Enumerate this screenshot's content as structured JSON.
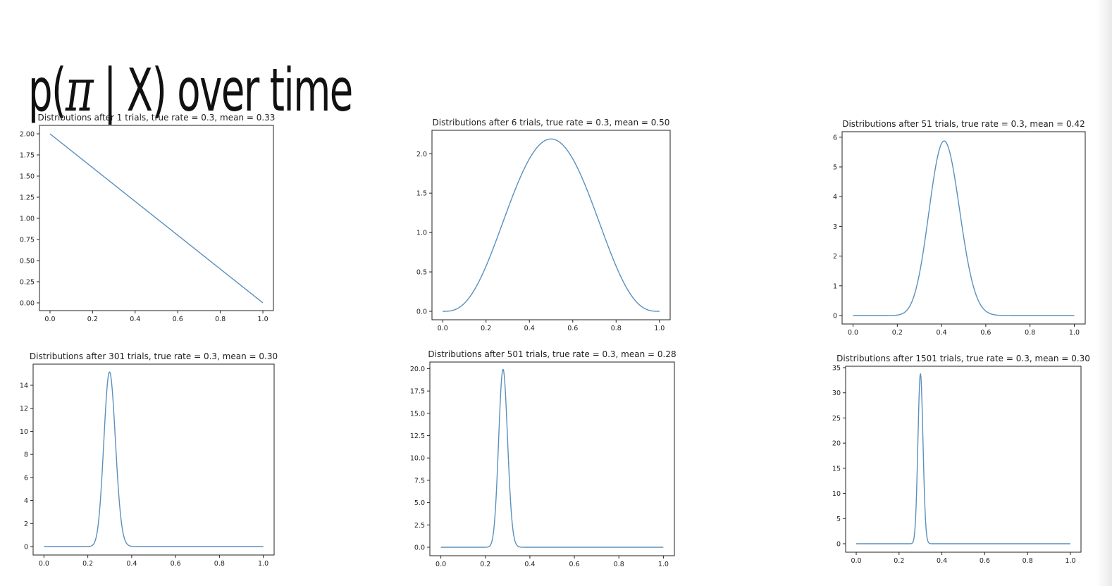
{
  "slide": {
    "title_prefix": "p(",
    "title_symbol": "π",
    "title_suffix": " | X) over time"
  },
  "colors": {
    "line": "#5a90bd",
    "axes": "#222222"
  },
  "chart_data": [
    {
      "type": "line",
      "title": "Distributions after 1 trials, true rate = 0.3, mean = 0.33",
      "beta": [
        1,
        2
      ],
      "xlim": [
        0,
        1
      ],
      "ylim": [
        0,
        2.0
      ],
      "xticks": [
        0,
        0.2,
        0.4,
        0.6,
        0.8,
        1.0
      ],
      "xtick_labels": [
        "0.0",
        "0.2",
        "0.4",
        "0.6",
        "0.8",
        "1.0"
      ],
      "yticks": [
        0,
        0.25,
        0.5,
        0.75,
        1.0,
        1.25,
        1.5,
        1.75,
        2.0
      ],
      "ytick_labels": [
        "0.00",
        "0.25",
        "0.50",
        "0.75",
        "1.00",
        "1.25",
        "1.50",
        "1.75",
        "2.00"
      ]
    },
    {
      "type": "line",
      "title": "Distributions after 6 trials, true rate = 0.3, mean = 0.50",
      "beta": [
        4,
        4
      ],
      "xlim": [
        0,
        1
      ],
      "ylim": [
        0,
        2.19
      ],
      "xticks": [
        0,
        0.2,
        0.4,
        0.6,
        0.8,
        1.0
      ],
      "xtick_labels": [
        "0.0",
        "0.2",
        "0.4",
        "0.6",
        "0.8",
        "1.0"
      ],
      "yticks": [
        0,
        0.5,
        1.0,
        1.5,
        2.0
      ],
      "ytick_labels": [
        "0.0",
        "0.5",
        "1.0",
        "1.5",
        "2.0"
      ]
    },
    {
      "type": "line",
      "title": "Distributions after 51 trials, true rate = 0.3, mean = 0.42",
      "beta": [
        22,
        31
      ],
      "xlim": [
        0,
        1
      ],
      "ylim": [
        0,
        5.9
      ],
      "xticks": [
        0,
        0.2,
        0.4,
        0.6,
        0.8,
        1.0
      ],
      "xtick_labels": [
        "0.0",
        "0.2",
        "0.4",
        "0.6",
        "0.8",
        "1.0"
      ],
      "yticks": [
        0,
        1,
        2,
        3,
        4,
        5,
        6
      ],
      "ytick_labels": [
        "0",
        "1",
        "2",
        "3",
        "4",
        "5",
        "6"
      ]
    },
    {
      "type": "line",
      "title": "Distributions after 301 trials, true rate = 0.3, mean = 0.30",
      "beta": [
        91,
        212
      ],
      "xlim": [
        0,
        1
      ],
      "ylim": [
        0,
        15.1
      ],
      "xticks": [
        0,
        0.2,
        0.4,
        0.6,
        0.8,
        1.0
      ],
      "xtick_labels": [
        "0.0",
        "0.2",
        "0.4",
        "0.6",
        "0.8",
        "1.0"
      ],
      "yticks": [
        0,
        2,
        4,
        6,
        8,
        10,
        12,
        14
      ],
      "ytick_labels": [
        "0",
        "2",
        "4",
        "6",
        "8",
        "10",
        "12",
        "14"
      ]
    },
    {
      "type": "line",
      "title": "Distributions after 501 trials, true rate = 0.3, mean = 0.28",
      "beta": [
        141,
        362
      ],
      "xlim": [
        0,
        1
      ],
      "ylim": [
        0,
        19.8
      ],
      "xticks": [
        0,
        0.2,
        0.4,
        0.6,
        0.8,
        1.0
      ],
      "xtick_labels": [
        "0.0",
        "0.2",
        "0.4",
        "0.6",
        "0.8",
        "1.0"
      ],
      "yticks": [
        0,
        2.5,
        5.0,
        7.5,
        10.0,
        12.5,
        15.0,
        17.5,
        20.0
      ],
      "ytick_labels": [
        "0.0",
        "2.5",
        "5.0",
        "7.5",
        "10.0",
        "12.5",
        "15.0",
        "17.5",
        "20.0"
      ]
    },
    {
      "type": "line",
      "title": "Distributions after 1501 trials, true rate = 0.3, mean = 0.30",
      "beta": [
        451,
        1052
      ],
      "xlim": [
        0,
        1
      ],
      "ylim": [
        0,
        33.6
      ],
      "xticks": [
        0,
        0.2,
        0.4,
        0.6,
        0.8,
        1.0
      ],
      "xtick_labels": [
        "0.0",
        "0.2",
        "0.4",
        "0.6",
        "0.8",
        "1.0"
      ],
      "yticks": [
        0,
        5,
        10,
        15,
        20,
        25,
        30,
        35
      ],
      "ytick_labels": [
        "0",
        "5",
        "10",
        "15",
        "20",
        "25",
        "30",
        "35"
      ]
    }
  ]
}
